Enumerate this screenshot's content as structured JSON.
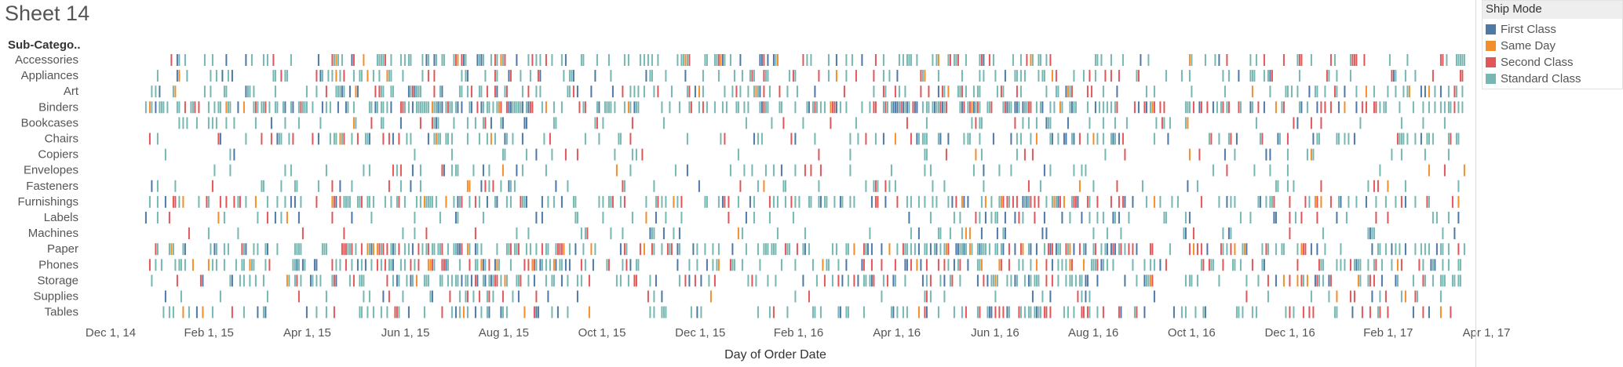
{
  "sheet": {
    "title": "Sheet 14"
  },
  "legend": {
    "title": "Ship Mode",
    "items": [
      {
        "label": "First Class",
        "color": "#4e79a7"
      },
      {
        "label": "Same Day",
        "color": "#f28e2b"
      },
      {
        "label": "Second Class",
        "color": "#e15759"
      },
      {
        "label": "Standard Class",
        "color": "#76b7b2"
      }
    ]
  },
  "chart_data": {
    "type": "scatter",
    "mark": "tick",
    "rows_header": "Sub-Catego..",
    "xlabel": "Day of Order Date",
    "x_ticks": [
      "Dec 1, 14",
      "Feb 1, 15",
      "Apr 1, 15",
      "Jun 1, 15",
      "Aug 1, 15",
      "Oct 1, 15",
      "Dec 1, 15",
      "Feb 1, 16",
      "Apr 1, 16",
      "Jun 1, 16",
      "Aug 1, 16",
      "Oct 1, 16",
      "Dec 1, 16",
      "Feb 1, 17",
      "Apr 1, 17"
    ],
    "xlim": [
      "2014-12-01",
      "2017-04-01"
    ],
    "data_range": [
      "2015-01-03",
      "2017-03-30"
    ],
    "categories": [
      "Accessories",
      "Appliances",
      "Art",
      "Binders",
      "Bookcases",
      "Chairs",
      "Copiers",
      "Envelopes",
      "Fasteners",
      "Furnishings",
      "Labels",
      "Machines",
      "Paper",
      "Phones",
      "Storage",
      "Supplies",
      "Tables"
    ],
    "relative_order_density": [
      0.55,
      0.38,
      0.45,
      0.85,
      0.28,
      0.42,
      0.1,
      0.22,
      0.22,
      0.62,
      0.25,
      0.15,
      0.8,
      0.62,
      0.62,
      0.18,
      0.42
    ],
    "series": [
      "First Class",
      "Same Day",
      "Second Class",
      "Standard Class"
    ],
    "series_share": [
      0.16,
      0.06,
      0.2,
      0.58
    ],
    "grid": false,
    "legend_position": "top-right"
  }
}
